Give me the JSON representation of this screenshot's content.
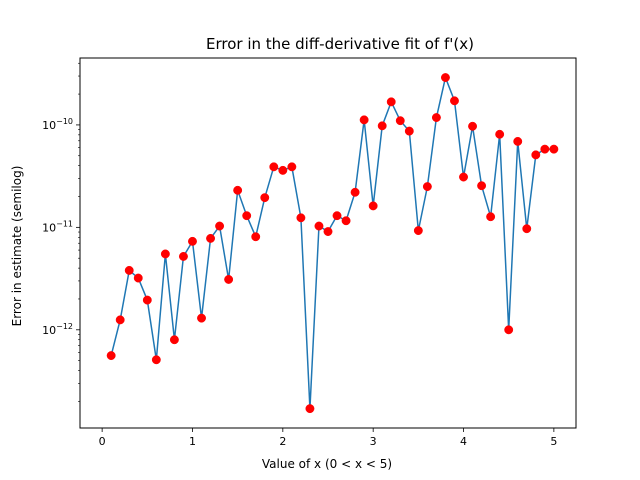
{
  "chart_data": {
    "type": "line",
    "title": "Error in the diff-derivative fit of f'(x)",
    "xlabel": "Value of x (0 < x < 5)",
    "ylabel": "Error in estimate (semilog)",
    "yscale": "log",
    "xlim": [
      -0.245,
      5.245
    ],
    "ylim": [
      1.1e-13,
      4.5e-10
    ],
    "x_ticks": [
      0,
      1,
      2,
      3,
      4,
      5
    ],
    "x_tick_labels": [
      "0",
      "1",
      "2",
      "3",
      "4",
      "5"
    ],
    "y_ticks": [
      1e-12,
      1e-11,
      1e-10
    ],
    "y_tick_labels": [
      {
        "base": "10",
        "exp": "−12"
      },
      {
        "base": "10",
        "exp": "−11"
      },
      {
        "base": "10",
        "exp": "−10"
      }
    ],
    "grid": false,
    "legend": "none",
    "colors": {
      "line": "#1f77b4",
      "marker": "#ff0000"
    },
    "x": [
      0.1,
      0.2,
      0.3,
      0.4,
      0.5,
      0.6,
      0.7,
      0.8,
      0.9,
      1.0,
      1.1,
      1.2,
      1.3,
      1.4,
      1.5,
      1.6,
      1.7,
      1.8,
      1.9,
      2.0,
      2.1,
      2.2,
      2.3,
      2.4,
      2.5,
      2.6,
      2.7,
      2.8,
      2.9,
      3.0,
      3.1,
      3.2,
      3.3,
      3.4,
      3.5,
      3.6,
      3.7,
      3.8,
      3.9,
      4.0,
      4.1,
      4.2,
      4.3,
      4.4,
      4.5,
      4.6,
      4.7,
      4.8,
      4.9,
      5.0
    ],
    "y": [
      5.6e-13,
      1.25e-12,
      3.8e-12,
      3.2e-12,
      1.95e-12,
      5.1e-13,
      5.5e-12,
      8e-13,
      5.2e-12,
      7.3e-12,
      1.3e-12,
      7.8e-12,
      1.03e-11,
      3.1e-12,
      2.3e-11,
      1.3e-11,
      8.1e-12,
      1.95e-11,
      3.9e-11,
      3.6e-11,
      3.9e-11,
      1.24e-11,
      1.7e-13,
      1.03e-11,
      9.1e-12,
      1.3e-11,
      1.16e-11,
      2.2e-11,
      1.12e-10,
      1.62e-11,
      9.8e-11,
      1.68e-10,
      1.1e-10,
      8.7e-11,
      9.3e-12,
      2.5e-11,
      1.18e-10,
      2.9e-10,
      1.72e-10,
      3.1e-11,
      9.7e-11,
      2.55e-11,
      1.27e-11,
      8.1e-11,
      1e-12,
      6.9e-11,
      9.7e-12,
      5.1e-11,
      5.8e-11,
      5.8e-11
    ]
  }
}
